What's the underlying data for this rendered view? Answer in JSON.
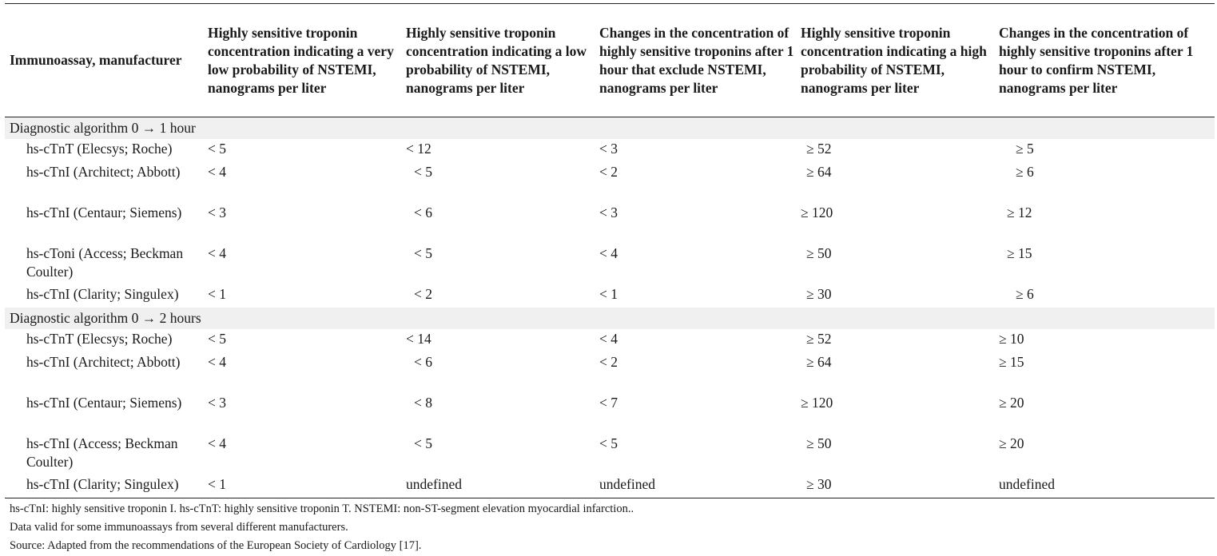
{
  "table": {
    "headers": [
      "Immunoassay, manufacturer",
      "Highly sensitive troponin concentration indicating a very low probability of NSTEMI, nanograms per liter",
      "Highly sensitive troponin concentration indicating a low probability of NSTEMI, nanograms per liter",
      "Changes in the concentration of highly sensitive troponins after 1 hour that exclude NSTEMI, nanograms per liter",
      "Highly sensitive troponin concentration indicating a high probability of NSTEMI, nanograms per liter",
      "Changes in the concentration of highly sensitive troponins after 1 hour to confirm NSTEMI, nanograms per liter"
    ],
    "sections": [
      {
        "title": "Diagnostic algorithm 0 → 1 hour",
        "rows": [
          {
            "name": "hs-cTnT (Elecsys; Roche)",
            "values": [
              "< 5",
              "< 12",
              "< 3",
              "≥ 52",
              "≥ 5"
            ]
          },
          {
            "name": "hs-cTnI (Architect; Abbott)",
            "values": [
              "< 4",
              "< 5",
              "< 2",
              "≥ 64",
              "≥ 6"
            ]
          },
          {
            "name": "hs-cTnI (Centaur; Siemens)",
            "values": [
              "< 3",
              "< 6",
              "< 3",
              "≥ 120",
              "≥ 12"
            ]
          },
          {
            "name": "hs-cToni (Access; Beckman Coulter)",
            "values": [
              "< 4",
              "< 5",
              "< 4",
              "≥ 50",
              "≥ 15"
            ]
          },
          {
            "name": "hs-cTnI (Clarity; Singulex)",
            "values": [
              "< 1",
              "< 2",
              "< 1",
              "≥ 30",
              "≥ 6"
            ]
          }
        ]
      },
      {
        "title": "Diagnostic algorithm 0 → 2 hours",
        "rows": [
          {
            "name": "hs-cTnT (Elecsys; Roche)",
            "values": [
              "< 5",
              "< 14",
              "< 4",
              "≥ 52",
              "≥ 10"
            ]
          },
          {
            "name": "hs-cTnI (Architect; Abbott)",
            "values": [
              "< 4",
              "< 6",
              "< 2",
              "≥ 64",
              "≥ 15"
            ]
          },
          {
            "name": "hs-cTnI (Centaur; Siemens)",
            "values": [
              "< 3",
              "< 8",
              "< 7",
              "≥ 120",
              "≥ 20"
            ]
          },
          {
            "name": "hs-cTnI (Access; Beckman Coulter)",
            "values": [
              "< 4",
              "< 5",
              "< 5",
              "≥ 50",
              "≥ 20"
            ]
          },
          {
            "name": "hs-cTnI (Clarity; Singulex)",
            "values": [
              "< 1",
              "undefined",
              "undefined",
              "≥ 30",
              "undefined"
            ]
          }
        ]
      }
    ]
  },
  "notes": [
    "hs-cTnI: highly sensitive troponin I. hs-cTnT: highly sensitive troponin T. NSTEMI: non-ST-segment elevation myocardial infarction..",
    "Data valid for some immunoassays from several different manufacturers.",
    "Source: Adapted from the recommendations of the European Society of Cardiology [17]."
  ]
}
